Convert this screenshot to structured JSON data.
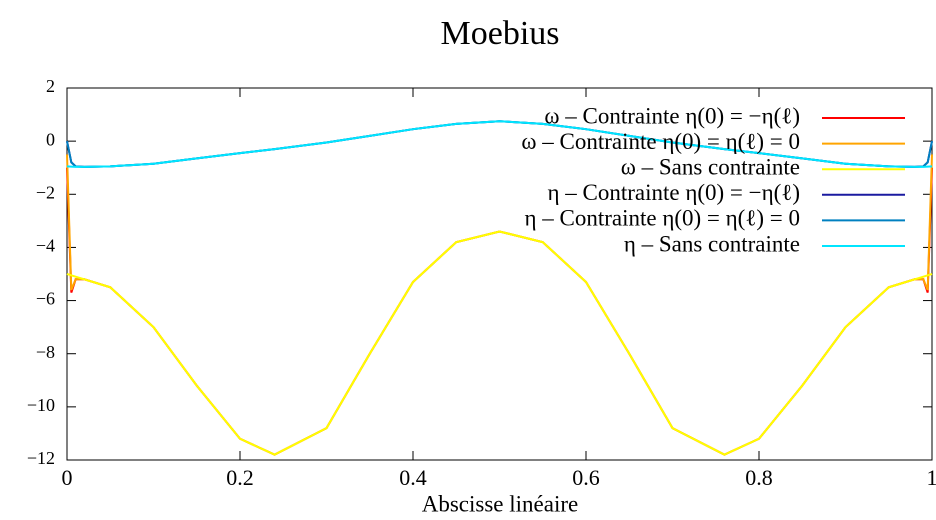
{
  "chart_data": {
    "type": "line",
    "title": "Moebius",
    "xlabel": "Abscisse linéaire",
    "x": [
      0,
      0.005,
      0.01,
      0.02,
      0.05,
      0.1,
      0.15,
      0.2,
      0.24,
      0.3,
      0.35,
      0.4,
      0.45,
      0.5,
      0.55,
      0.6,
      0.65,
      0.7,
      0.76,
      0.8,
      0.85,
      0.9,
      0.95,
      0.98,
      0.99,
      0.995,
      1
    ],
    "series": [
      {
        "name": "ω – Contrainte η(0) = −η(ℓ)",
        "color": "#ff0000",
        "values": [
          -1,
          -5.7,
          -5.2,
          -5.2,
          -5.5,
          -7,
          -9.2,
          -11.2,
          -11.8,
          -10.8,
          -8,
          -5.3,
          -3.8,
          -3.4,
          -3.8,
          -5.3,
          -8,
          -10.8,
          -11.8,
          -11.2,
          -9.2,
          -7,
          -5.5,
          -5.2,
          -5.2,
          -5.7,
          -1
        ]
      },
      {
        "name": "ω – Contrainte η(0) = η(ℓ) = 0",
        "color": "#ffa500",
        "values": [
          -0.5,
          -5.6,
          -5.2,
          -5.2,
          -5.5,
          -7,
          -9.2,
          -11.2,
          -11.8,
          -10.8,
          -8,
          -5.3,
          -3.8,
          -3.4,
          -3.8,
          -5.3,
          -8,
          -10.8,
          -11.8,
          -11.2,
          -9.2,
          -7,
          -5.5,
          -5.2,
          -5.2,
          -5.6,
          -0.5
        ]
      },
      {
        "name": "ω – Sans contrainte",
        "color": "#ffff00",
        "values": [
          -5,
          -5.05,
          -5.1,
          -5.2,
          -5.5,
          -7,
          -9.2,
          -11.2,
          -11.8,
          -10.8,
          -8,
          -5.3,
          -3.8,
          -3.4,
          -3.8,
          -5.3,
          -8,
          -10.8,
          -11.8,
          -11.2,
          -9.2,
          -7,
          -5.5,
          -5.2,
          -5.1,
          -5.05,
          -5
        ]
      },
      {
        "name": "η – Contrainte η(0) = −η(ℓ)",
        "color": "#1a1aa0",
        "values": [
          0,
          -0.8,
          -0.95,
          -0.97,
          -0.95,
          -0.85,
          -0.65,
          -0.45,
          -0.3,
          -0.05,
          0.2,
          0.45,
          0.65,
          0.75,
          0.65,
          0.45,
          0.2,
          -0.05,
          -0.3,
          -0.45,
          -0.65,
          -0.85,
          -0.95,
          -0.97,
          -0.95,
          -0.8,
          0
        ]
      },
      {
        "name": "η – Contrainte η(0) = η(ℓ) = 0",
        "color": "#0080c0",
        "values": [
          0,
          -0.8,
          -0.95,
          -0.97,
          -0.95,
          -0.85,
          -0.65,
          -0.45,
          -0.3,
          -0.05,
          0.2,
          0.45,
          0.65,
          0.75,
          0.65,
          0.45,
          0.2,
          -0.05,
          -0.3,
          -0.45,
          -0.65,
          -0.85,
          -0.95,
          -0.97,
          -0.95,
          -0.8,
          0
        ]
      },
      {
        "name": "η – Sans contrainte",
        "color": "#00e5ff",
        "values": [
          -0.95,
          -0.96,
          -0.97,
          -0.97,
          -0.95,
          -0.85,
          -0.65,
          -0.45,
          -0.3,
          -0.05,
          0.2,
          0.45,
          0.65,
          0.75,
          0.65,
          0.45,
          0.2,
          -0.05,
          -0.3,
          -0.45,
          -0.65,
          -0.85,
          -0.95,
          -0.97,
          -0.97,
          -0.96,
          -0.95
        ]
      }
    ],
    "xlim": [
      0,
      1
    ],
    "xticks": [
      0,
      0.2,
      0.4,
      0.6,
      0.8,
      1
    ],
    "ylim": [
      -12,
      2
    ],
    "yticks": [
      {
        "value": -12,
        "label": "−12"
      },
      {
        "value": -10,
        "label": "−10"
      },
      {
        "value": -8,
        "label": "−8"
      },
      {
        "value": -6,
        "label": "−6"
      },
      {
        "value": -4,
        "label": "−4"
      },
      {
        "value": -2,
        "label": "−2"
      },
      0,
      2
    ],
    "legend": "upper right"
  }
}
